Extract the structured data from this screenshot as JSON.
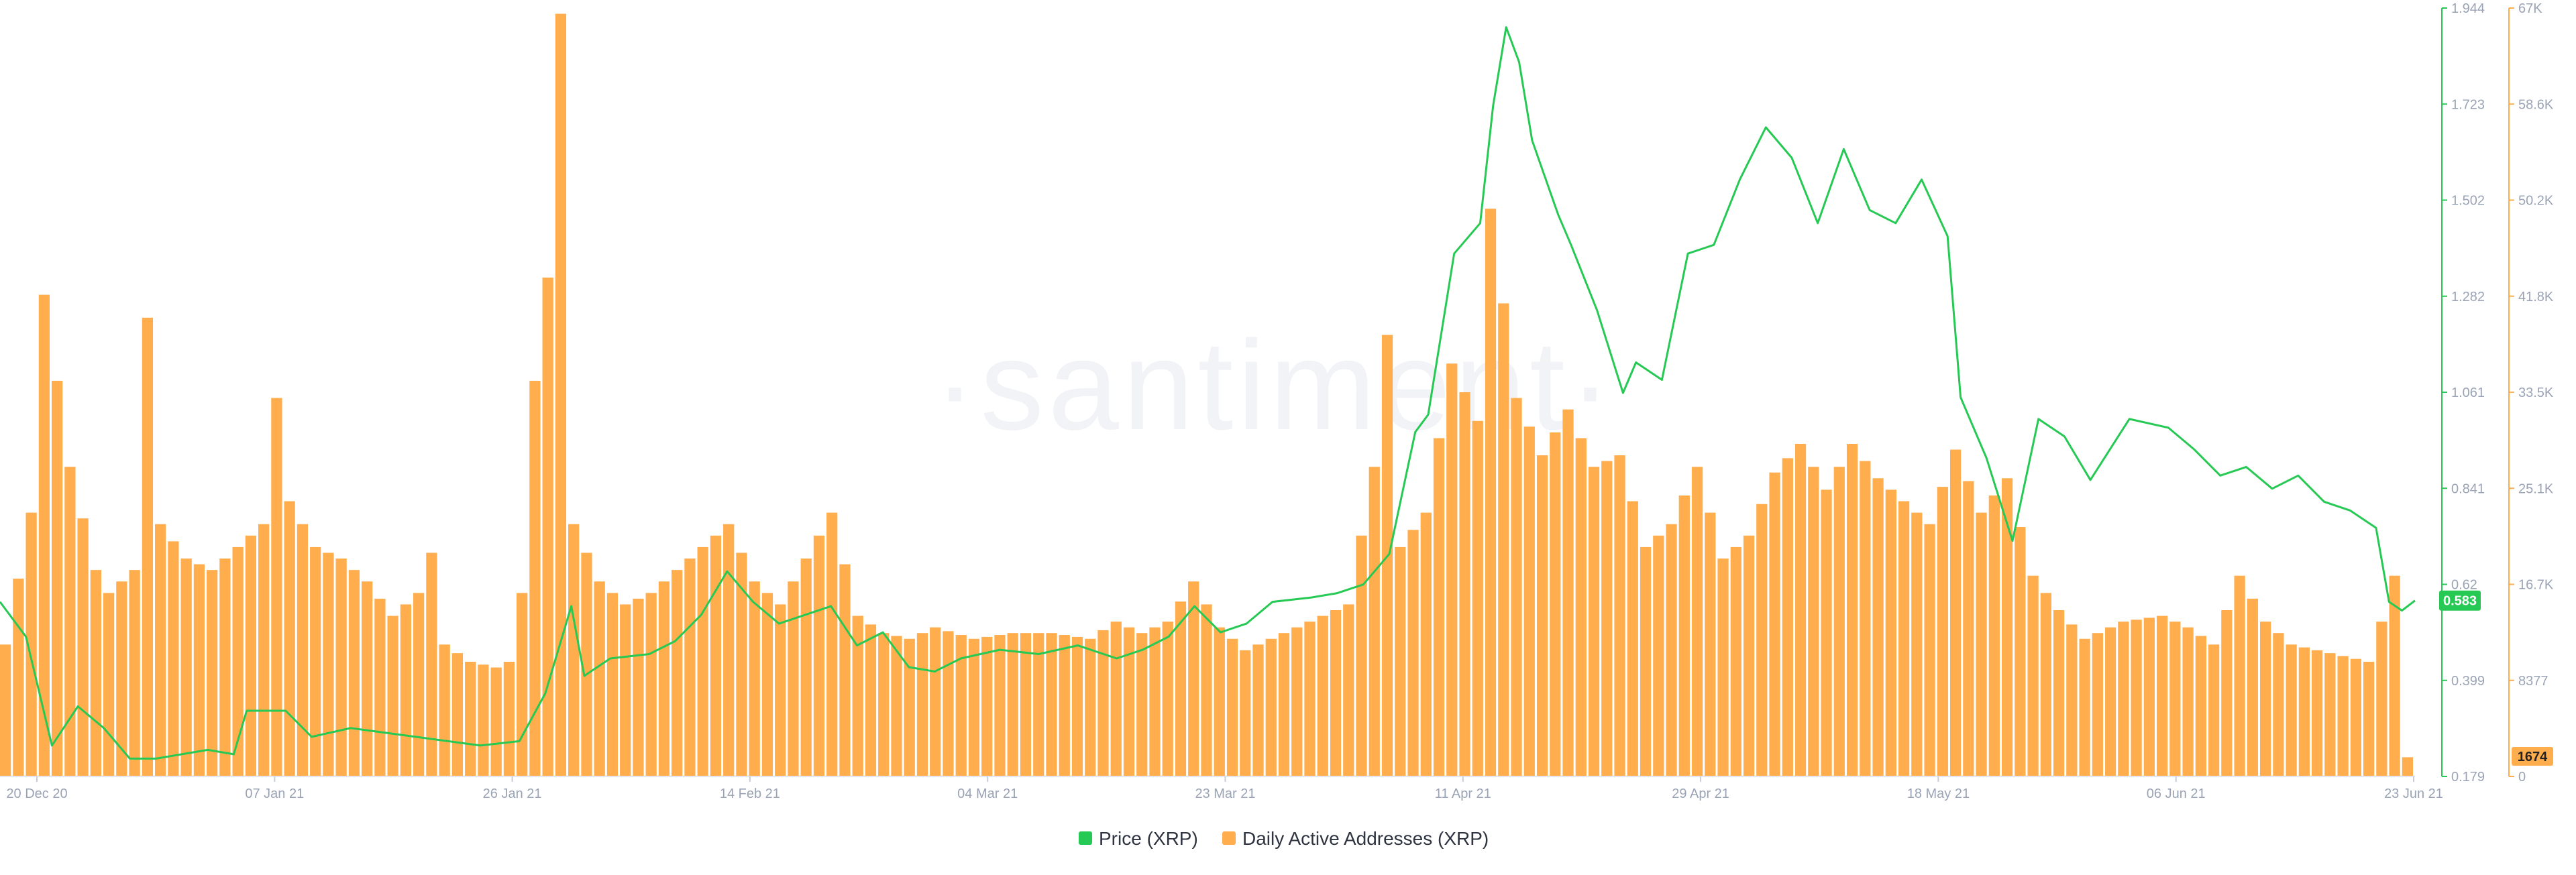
{
  "chart_data": {
    "type": "bar+line",
    "watermark": "·santiment·",
    "x_ticks": [
      "20 Dec 20",
      "07 Jan 21",
      "26 Jan 21",
      "14 Feb 21",
      "04 Mar 21",
      "23 Mar 21",
      "11 Apr 21",
      "29 Apr 21",
      "18 May 21",
      "06 Jun 21",
      "23 Jun 21"
    ],
    "x_range": [
      "2020-12-19",
      "2021-06-23"
    ],
    "price_axis": {
      "ticks": [
        "1.944",
        "1.723",
        "1.502",
        "1.282",
        "1.061",
        "0.841",
        "0.62",
        "0.399",
        "0.179"
      ],
      "min": 0.179,
      "max": 1.944,
      "color": "#26c953"
    },
    "address_axis": {
      "ticks": [
        "67K",
        "58.6K",
        "50.2K",
        "41.8K",
        "33.5K",
        "25.1K",
        "16.7K",
        "8377",
        "0"
      ],
      "min": 0,
      "max": 67000,
      "color": "#ffad4d"
    },
    "current_price_label": "0.583",
    "current_addresses_label": "1674",
    "series": [
      {
        "name": "Price (XRP)",
        "kind": "line",
        "color": "#26c953",
        "points": [
          [
            "2020-12-19",
            0.58
          ],
          [
            "2020-12-21",
            0.5
          ],
          [
            "2020-12-23",
            0.25
          ],
          [
            "2020-12-25",
            0.34
          ],
          [
            "2020-12-27",
            0.29
          ],
          [
            "2020-12-29",
            0.22
          ],
          [
            "2020-12-31",
            0.22
          ],
          [
            "2021-01-02",
            0.23
          ],
          [
            "2021-01-04",
            0.24
          ],
          [
            "2021-01-06",
            0.23
          ],
          [
            "2021-01-07",
            0.33
          ],
          [
            "2021-01-10",
            0.33
          ],
          [
            "2021-01-12",
            0.27
          ],
          [
            "2021-01-15",
            0.29
          ],
          [
            "2021-01-20",
            0.27
          ],
          [
            "2021-01-25",
            0.25
          ],
          [
            "2021-01-28",
            0.26
          ],
          [
            "2021-01-30",
            0.37
          ],
          [
            "2021-02-01",
            0.57
          ],
          [
            "2021-02-02",
            0.41
          ],
          [
            "2021-02-04",
            0.45
          ],
          [
            "2021-02-07",
            0.46
          ],
          [
            "2021-02-09",
            0.49
          ],
          [
            "2021-02-11",
            0.55
          ],
          [
            "2021-02-13",
            0.65
          ],
          [
            "2021-02-15",
            0.58
          ],
          [
            "2021-02-17",
            0.53
          ],
          [
            "2021-02-19",
            0.55
          ],
          [
            "2021-02-21",
            0.57
          ],
          [
            "2021-02-23",
            0.48
          ],
          [
            "2021-02-25",
            0.51
          ],
          [
            "2021-02-27",
            0.43
          ],
          [
            "2021-03-01",
            0.42
          ],
          [
            "2021-03-03",
            0.45
          ],
          [
            "2021-03-06",
            0.47
          ],
          [
            "2021-03-09",
            0.46
          ],
          [
            "2021-03-12",
            0.48
          ],
          [
            "2021-03-15",
            0.45
          ],
          [
            "2021-03-17",
            0.47
          ],
          [
            "2021-03-19",
            0.5
          ],
          [
            "2021-03-21",
            0.57
          ],
          [
            "2021-03-23",
            0.51
          ],
          [
            "2021-03-25",
            0.53
          ],
          [
            "2021-03-27",
            0.58
          ],
          [
            "2021-03-30",
            0.59
          ],
          [
            "2021-04-01",
            0.6
          ],
          [
            "2021-04-03",
            0.62
          ],
          [
            "2021-04-05",
            0.69
          ],
          [
            "2021-04-07",
            0.97
          ],
          [
            "2021-04-08",
            1.01
          ],
          [
            "2021-04-10",
            1.38
          ],
          [
            "2021-04-12",
            1.45
          ],
          [
            "2021-04-13",
            1.72
          ],
          [
            "2021-04-14",
            1.9
          ],
          [
            "2021-04-15",
            1.82
          ],
          [
            "2021-04-16",
            1.64
          ],
          [
            "2021-04-18",
            1.47
          ],
          [
            "2021-04-19",
            1.4
          ],
          [
            "2021-04-21",
            1.25
          ],
          [
            "2021-04-23",
            1.06
          ],
          [
            "2021-04-24",
            1.13
          ],
          [
            "2021-04-26",
            1.09
          ],
          [
            "2021-04-28",
            1.38
          ],
          [
            "2021-04-30",
            1.4
          ],
          [
            "2021-05-02",
            1.55
          ],
          [
            "2021-05-04",
            1.67
          ],
          [
            "2021-05-06",
            1.6
          ],
          [
            "2021-05-08",
            1.45
          ],
          [
            "2021-05-10",
            1.62
          ],
          [
            "2021-05-12",
            1.48
          ],
          [
            "2021-05-14",
            1.45
          ],
          [
            "2021-05-16",
            1.55
          ],
          [
            "2021-05-18",
            1.42
          ],
          [
            "2021-05-19",
            1.05
          ],
          [
            "2021-05-21",
            0.91
          ],
          [
            "2021-05-23",
            0.72
          ],
          [
            "2021-05-25",
            1.0
          ],
          [
            "2021-05-27",
            0.96
          ],
          [
            "2021-05-29",
            0.86
          ],
          [
            "2021-06-01",
            1.0
          ],
          [
            "2021-06-04",
            0.98
          ],
          [
            "2021-06-06",
            0.93
          ],
          [
            "2021-06-08",
            0.87
          ],
          [
            "2021-06-10",
            0.89
          ],
          [
            "2021-06-12",
            0.84
          ],
          [
            "2021-06-14",
            0.87
          ],
          [
            "2021-06-16",
            0.81
          ],
          [
            "2021-06-18",
            0.79
          ],
          [
            "2021-06-20",
            0.75
          ],
          [
            "2021-06-21",
            0.58
          ],
          [
            "2021-06-22",
            0.56
          ],
          [
            "2021-06-23",
            0.583
          ]
        ]
      },
      {
        "name": "Daily Active Addresses (XRP)",
        "kind": "bar",
        "color": "#ffad4d",
        "points": [
          [
            "2020-12-19",
            11500
          ],
          [
            "2020-12-21",
            23000
          ],
          [
            "2020-12-22",
            42000
          ],
          [
            "2020-12-24",
            27000
          ],
          [
            "2020-12-26",
            18000
          ],
          [
            "2020-12-27",
            16000
          ],
          [
            "2020-12-29",
            18000
          ],
          [
            "2020-12-30",
            40000
          ],
          [
            "2020-12-31",
            22000
          ],
          [
            "2021-01-02",
            19000
          ],
          [
            "2021-01-04",
            18000
          ],
          [
            "2021-01-06",
            20000
          ],
          [
            "2021-01-08",
            22000
          ],
          [
            "2021-01-09",
            33000
          ],
          [
            "2021-01-10",
            24000
          ],
          [
            "2021-01-12",
            20000
          ],
          [
            "2021-01-14",
            19000
          ],
          [
            "2021-01-16",
            17000
          ],
          [
            "2021-01-18",
            14000
          ],
          [
            "2021-01-20",
            16000
          ],
          [
            "2021-01-21",
            19500
          ],
          [
            "2021-01-22",
            11500
          ],
          [
            "2021-01-24",
            10000
          ],
          [
            "2021-01-26",
            9500
          ],
          [
            "2021-01-27",
            10000
          ],
          [
            "2021-01-28",
            16000
          ],
          [
            "2021-01-29",
            34500
          ],
          [
            "2021-01-30",
            43500
          ],
          [
            "2021-01-31",
            66500
          ],
          [
            "2021-02-01",
            22000
          ],
          [
            "2021-02-03",
            17000
          ],
          [
            "2021-02-05",
            15000
          ],
          [
            "2021-02-07",
            16000
          ],
          [
            "2021-02-09",
            18000
          ],
          [
            "2021-02-11",
            20000
          ],
          [
            "2021-02-13",
            22000
          ],
          [
            "2021-02-15",
            17000
          ],
          [
            "2021-02-17",
            15000
          ],
          [
            "2021-02-19",
            19000
          ],
          [
            "2021-02-21",
            23000
          ],
          [
            "2021-02-23",
            14000
          ],
          [
            "2021-02-25",
            12500
          ],
          [
            "2021-02-27",
            12000
          ],
          [
            "2021-03-01",
            13000
          ],
          [
            "2021-03-04",
            12000
          ],
          [
            "2021-03-07",
            12500
          ],
          [
            "2021-03-10",
            12500
          ],
          [
            "2021-03-13",
            12000
          ],
          [
            "2021-03-15",
            13500
          ],
          [
            "2021-03-17",
            12500
          ],
          [
            "2021-03-19",
            13500
          ],
          [
            "2021-03-21",
            17000
          ],
          [
            "2021-03-23",
            13000
          ],
          [
            "2021-03-25",
            11000
          ],
          [
            "2021-03-27",
            12000
          ],
          [
            "2021-03-29",
            13000
          ],
          [
            "2021-03-31",
            14000
          ],
          [
            "2021-04-02",
            15000
          ],
          [
            "2021-04-04",
            27000
          ],
          [
            "2021-04-05",
            38500
          ],
          [
            "2021-04-06",
            20000
          ],
          [
            "2021-04-08",
            23000
          ],
          [
            "2021-04-10",
            36000
          ],
          [
            "2021-04-12",
            31000
          ],
          [
            "2021-04-13",
            49500
          ],
          [
            "2021-04-15",
            33000
          ],
          [
            "2021-04-17",
            28000
          ],
          [
            "2021-04-19",
            32000
          ],
          [
            "2021-04-21",
            27000
          ],
          [
            "2021-04-23",
            28000
          ],
          [
            "2021-04-25",
            20000
          ],
          [
            "2021-04-27",
            22000
          ],
          [
            "2021-04-29",
            27000
          ],
          [
            "2021-05-01",
            19000
          ],
          [
            "2021-05-03",
            21000
          ],
          [
            "2021-05-05",
            26500
          ],
          [
            "2021-05-07",
            29000
          ],
          [
            "2021-05-09",
            25000
          ],
          [
            "2021-05-11",
            29000
          ],
          [
            "2021-05-13",
            26000
          ],
          [
            "2021-05-15",
            24000
          ],
          [
            "2021-05-17",
            22000
          ],
          [
            "2021-05-19",
            28500
          ],
          [
            "2021-05-21",
            23000
          ],
          [
            "2021-05-23",
            26000
          ],
          [
            "2021-05-25",
            17500
          ],
          [
            "2021-05-27",
            14500
          ],
          [
            "2021-05-29",
            12000
          ],
          [
            "2021-06-01",
            13500
          ],
          [
            "2021-06-04",
            14000
          ],
          [
            "2021-06-06",
            13000
          ],
          [
            "2021-06-08",
            11500
          ],
          [
            "2021-06-10",
            17500
          ],
          [
            "2021-06-12",
            13500
          ],
          [
            "2021-06-14",
            11500
          ],
          [
            "2021-06-16",
            11000
          ],
          [
            "2021-06-18",
            10500
          ],
          [
            "2021-06-20",
            10000
          ],
          [
            "2021-06-21",
            13500
          ],
          [
            "2021-06-22",
            17500
          ],
          [
            "2021-06-23",
            1674
          ]
        ]
      }
    ],
    "legend_placement": "bottom-center",
    "grid": false
  }
}
